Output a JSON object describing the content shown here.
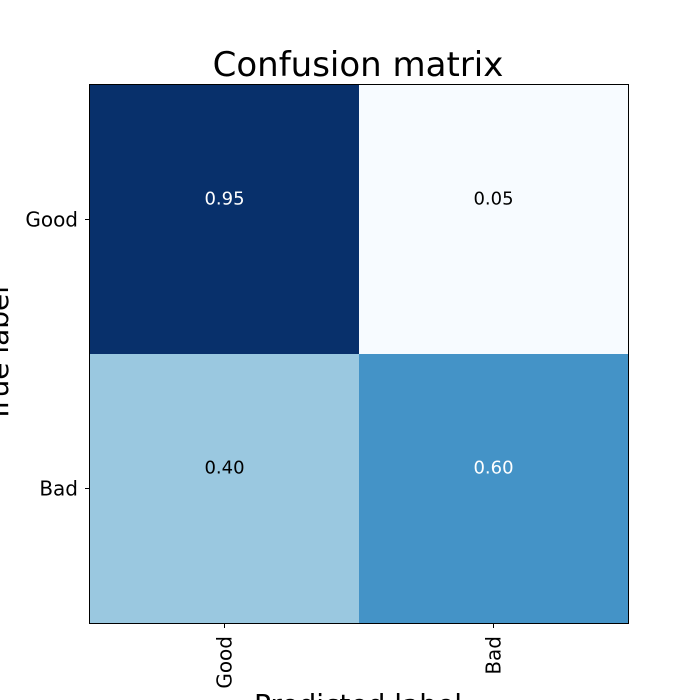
{
  "chart_data": {
    "type": "heatmap",
    "title": "Confusion matrix",
    "xlabel": "Predicted label",
    "ylabel": "True label",
    "x_categories": [
      "Good",
      "Bad"
    ],
    "y_categories": [
      "Good",
      "Bad"
    ],
    "values": [
      [
        0.95,
        0.05
      ],
      [
        0.4,
        0.6
      ]
    ],
    "cell_labels": [
      [
        "0.95",
        "0.05"
      ],
      [
        "0.40",
        "0.60"
      ]
    ],
    "colormap": "Blues",
    "cell_colors": [
      [
        "#08306b",
        "#f7fbff"
      ],
      [
        "#9ac8e0",
        "#4493c7"
      ]
    ],
    "cell_text_colors": [
      [
        "#ffffff",
        "#000000"
      ],
      [
        "#000000",
        "#ffffff"
      ]
    ],
    "x_tick_rotation": "vertical",
    "grid": false,
    "legend": "none"
  }
}
